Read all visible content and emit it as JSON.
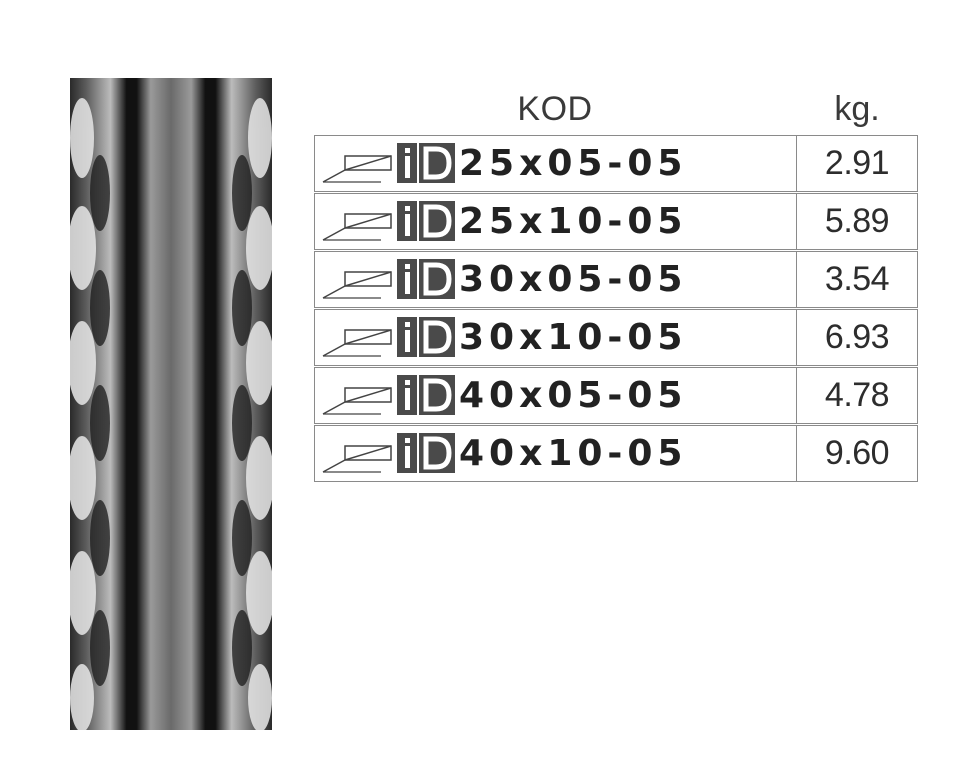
{
  "table": {
    "header": {
      "code": "KOD",
      "weight": "kg."
    },
    "rows": [
      {
        "code": "25x05-05",
        "kg": "2.91"
      },
      {
        "code": "25x10-05",
        "kg": "5.89"
      },
      {
        "code": "30x05-05",
        "kg": "3.54"
      },
      {
        "code": "30x10-05",
        "kg": "6.93"
      },
      {
        "code": "40x05-05",
        "kg": "4.78"
      },
      {
        "code": "40x10-05",
        "kg": "9.60"
      }
    ]
  },
  "icons": {
    "profile": "flat-bar-profile-icon",
    "brand": "id-logo-icon"
  },
  "colors": {
    "logo_bg": "#4a4a4a",
    "logo_text": "#ffffff",
    "border": "#8a8a8a"
  }
}
